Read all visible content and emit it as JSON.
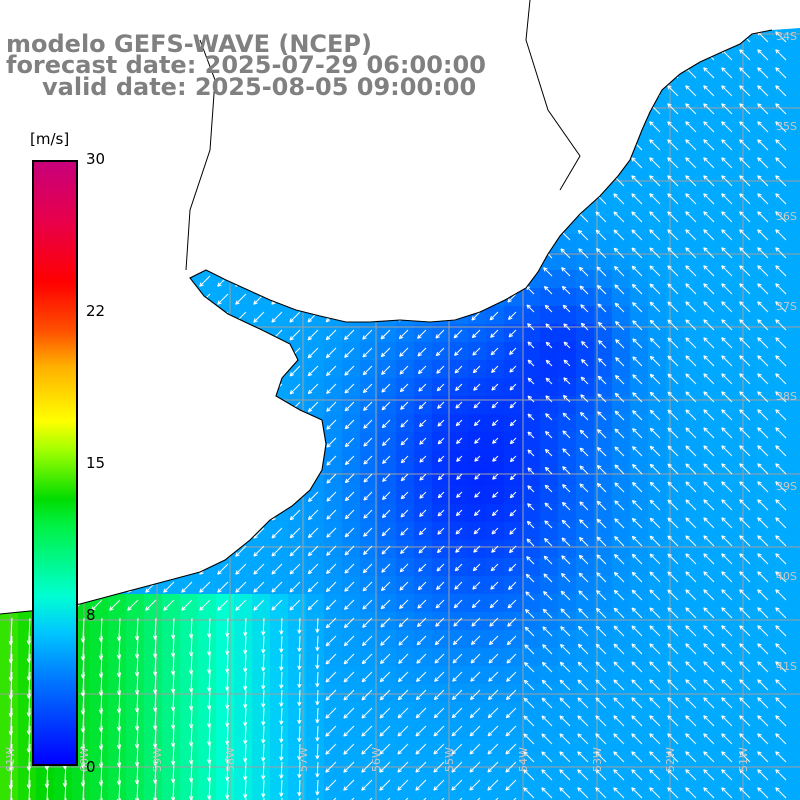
{
  "title": {
    "model": "modelo GEFS-WAVE (NCEP)",
    "forecast": "forecast date: 2025-07-29 06:00:00",
    "valid": "valid date: 2025-08-05 09:00:00"
  },
  "colorbar": {
    "unit": "[m/s]",
    "ticks": [
      "30",
      "22",
      "15",
      "8",
      "0"
    ],
    "tick_values": [
      30,
      22,
      15,
      8,
      0
    ],
    "range": [
      0,
      30
    ],
    "colors": [
      "#0000ff",
      "#00c8ff",
      "#00ffd0",
      "#00dc00",
      "#ffff00",
      "#ff5000",
      "#ff0000",
      "#c8007a"
    ]
  },
  "map": {
    "lat_labels": [
      "34S",
      "35S",
      "36S",
      "37S",
      "38S",
      "39S",
      "40S",
      "41S"
    ],
    "lon_labels": [
      "61W",
      "60W",
      "59W",
      "58W",
      "57W",
      "56W",
      "55W",
      "54W",
      "53W",
      "52W",
      "51W"
    ],
    "land_color": "#ffffff",
    "grid_color": "#a0a0a0",
    "coast_color": "#000000",
    "arrow_color": "#ffffff",
    "field_description_colors": {
      "low": "#0000ff",
      "mid": "#00b4ff",
      "high": "#00e000"
    }
  }
}
